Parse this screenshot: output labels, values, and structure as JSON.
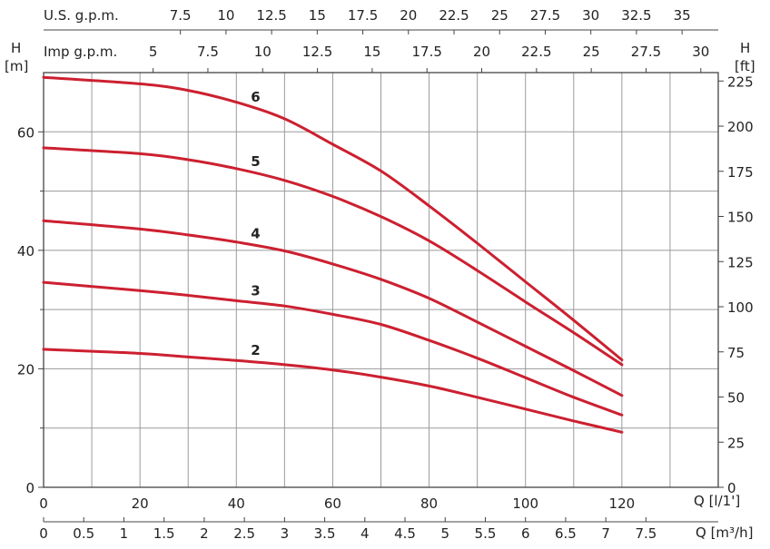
{
  "chart_data": {
    "type": "line",
    "left_axis": {
      "label_top": "H",
      "label_unit": "[m]",
      "range": [
        0,
        70
      ],
      "ticks": [
        0,
        20,
        40,
        60
      ]
    },
    "right_axis": {
      "label_top": "H",
      "label_unit": "[ft]",
      "ticks": [
        0,
        25,
        50,
        75,
        100,
        125,
        150,
        175,
        200,
        225
      ]
    },
    "x_axis": {
      "label": "Q [l/1']",
      "range": [
        0,
        140
      ],
      "ticks": [
        0,
        20,
        40,
        60,
        80,
        100,
        120
      ]
    },
    "x_axis_m3h": {
      "label": "Q [m³/h]",
      "ticks": [
        "0",
        "0.5",
        "1",
        "1.5",
        "2",
        "2.5",
        "3",
        "3.5",
        "4",
        "4.5",
        "5",
        "5.5",
        "6",
        "6.5",
        "7",
        "7.5"
      ]
    },
    "x_axis_usgpm": {
      "label": "U.S. g.p.m.",
      "ticks": [
        "7.5",
        "10",
        "12.5",
        "15",
        "17.5",
        "20",
        "22.5",
        "25",
        "27.5",
        "30",
        "32.5",
        "35"
      ]
    },
    "x_axis_impgpm": {
      "label": "Imp g.p.m.",
      "ticks": [
        "5",
        "7.5",
        "10",
        "12.5",
        "15",
        "17.5",
        "20",
        "22.5",
        "25",
        "27.5",
        "30"
      ]
    },
    "grid": true,
    "series": [
      {
        "name": "6",
        "color": "#cc2030",
        "points": [
          [
            0,
            69.2
          ],
          [
            20,
            68.1
          ],
          [
            30,
            67.0
          ],
          [
            40,
            65.0
          ],
          [
            50,
            62.2
          ],
          [
            60,
            57.9
          ],
          [
            70,
            53.4
          ],
          [
            80,
            47.5
          ],
          [
            90,
            41.2
          ],
          [
            100,
            34.7
          ],
          [
            110,
            28.2
          ],
          [
            120,
            21.5
          ]
        ]
      },
      {
        "name": "5",
        "color": "#cc2030",
        "points": [
          [
            0,
            57.3
          ],
          [
            20,
            56.3
          ],
          [
            30,
            55.3
          ],
          [
            40,
            53.8
          ],
          [
            50,
            51.8
          ],
          [
            60,
            49.1
          ],
          [
            70,
            45.7
          ],
          [
            80,
            41.6
          ],
          [
            90,
            36.6
          ],
          [
            100,
            31.3
          ],
          [
            110,
            26.1
          ],
          [
            120,
            20.7
          ]
        ]
      },
      {
        "name": "4",
        "color": "#cc2030",
        "points": [
          [
            0,
            45.0
          ],
          [
            20,
            43.6
          ],
          [
            30,
            42.6
          ],
          [
            40,
            41.4
          ],
          [
            50,
            39.9
          ],
          [
            60,
            37.7
          ],
          [
            70,
            35.1
          ],
          [
            80,
            31.9
          ],
          [
            90,
            27.9
          ],
          [
            100,
            23.8
          ],
          [
            110,
            19.7
          ],
          [
            120,
            15.5
          ]
        ]
      },
      {
        "name": "3",
        "color": "#cc2030",
        "points": [
          [
            0,
            34.6
          ],
          [
            20,
            33.2
          ],
          [
            30,
            32.4
          ],
          [
            40,
            31.5
          ],
          [
            50,
            30.6
          ],
          [
            60,
            29.2
          ],
          [
            70,
            27.5
          ],
          [
            80,
            24.8
          ],
          [
            90,
            21.8
          ],
          [
            100,
            18.5
          ],
          [
            110,
            15.2
          ],
          [
            120,
            12.2
          ]
        ]
      },
      {
        "name": "2",
        "color": "#cc2030",
        "points": [
          [
            0,
            23.3
          ],
          [
            20,
            22.6
          ],
          [
            30,
            22.0
          ],
          [
            40,
            21.4
          ],
          [
            50,
            20.7
          ],
          [
            60,
            19.8
          ],
          [
            70,
            18.6
          ],
          [
            80,
            17.1
          ],
          [
            90,
            15.2
          ],
          [
            100,
            13.2
          ],
          [
            110,
            11.2
          ],
          [
            120,
            9.3
          ]
        ]
      }
    ]
  }
}
